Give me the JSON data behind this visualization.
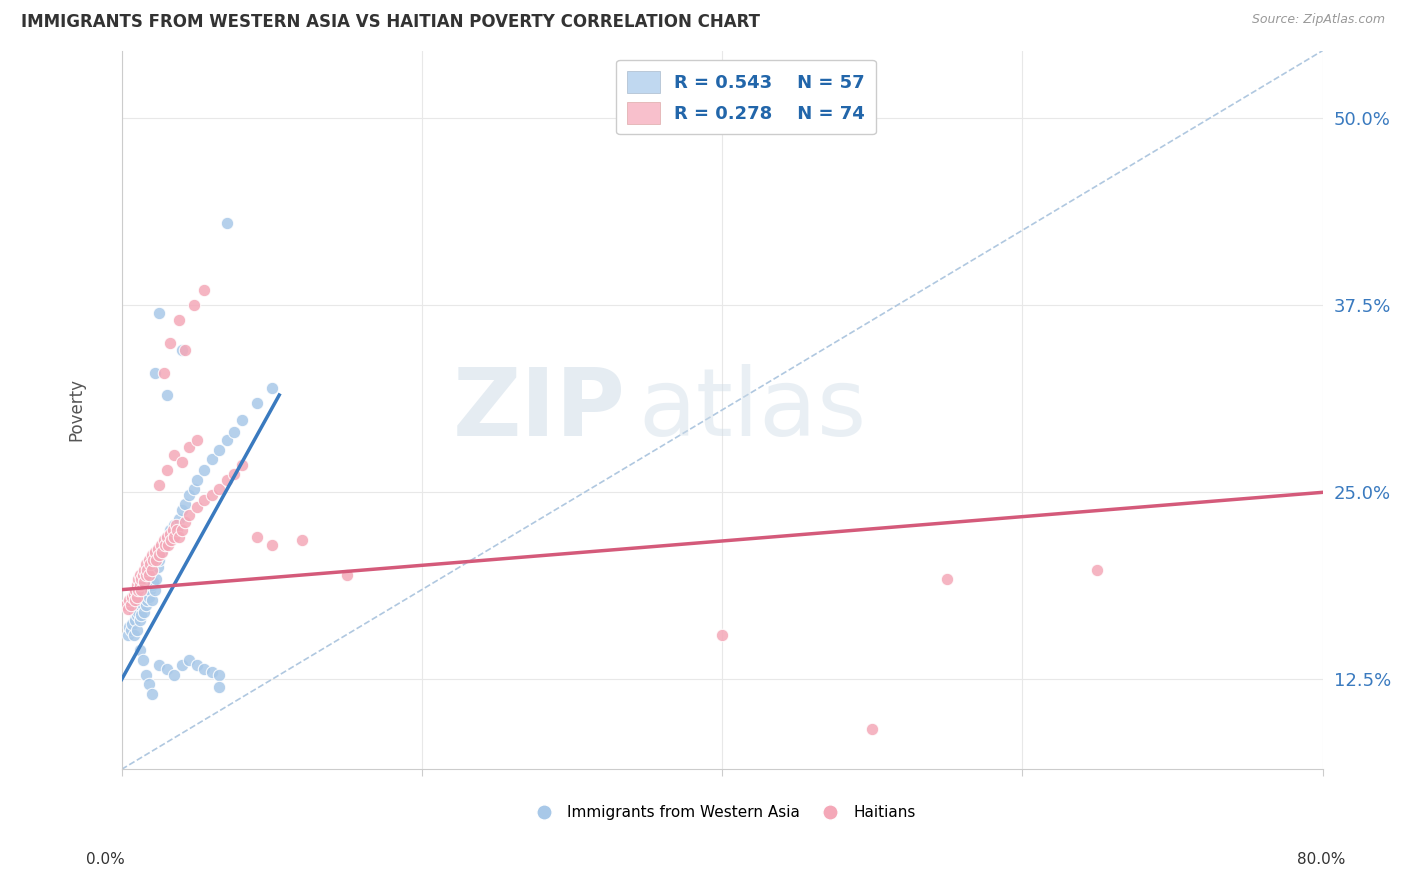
{
  "title": "IMMIGRANTS FROM WESTERN ASIA VS HAITIAN POVERTY CORRELATION CHART",
  "source": "Source: ZipAtlas.com",
  "ylabel": "Poverty",
  "ytick_values": [
    0.125,
    0.25,
    0.375,
    0.5
  ],
  "xlim": [
    0.0,
    0.8
  ],
  "ylim": [
    0.065,
    0.545
  ],
  "blue_color": "#a8c8e8",
  "pink_color": "#f4a8b8",
  "blue_line_color": "#3a7abf",
  "pink_line_color": "#d45a7a",
  "dashed_line_color": "#b0c8e0",
  "background_color": "#ffffff",
  "grid_color": "#e8e8e8",
  "blue_scatter": [
    [
      0.004,
      0.155
    ],
    [
      0.005,
      0.16
    ],
    [
      0.006,
      0.158
    ],
    [
      0.007,
      0.162
    ],
    [
      0.008,
      0.155
    ],
    [
      0.008,
      0.17
    ],
    [
      0.009,
      0.165
    ],
    [
      0.009,
      0.172
    ],
    [
      0.01,
      0.158
    ],
    [
      0.01,
      0.168
    ],
    [
      0.01,
      0.175
    ],
    [
      0.011,
      0.17
    ],
    [
      0.012,
      0.165
    ],
    [
      0.012,
      0.175
    ],
    [
      0.013,
      0.168
    ],
    [
      0.013,
      0.178
    ],
    [
      0.014,
      0.175
    ],
    [
      0.014,
      0.182
    ],
    [
      0.015,
      0.17
    ],
    [
      0.015,
      0.18
    ],
    [
      0.016,
      0.175
    ],
    [
      0.016,
      0.185
    ],
    [
      0.017,
      0.178
    ],
    [
      0.018,
      0.18
    ],
    [
      0.018,
      0.188
    ],
    [
      0.019,
      0.185
    ],
    [
      0.02,
      0.178
    ],
    [
      0.02,
      0.188
    ],
    [
      0.021,
      0.19
    ],
    [
      0.022,
      0.185
    ],
    [
      0.023,
      0.192
    ],
    [
      0.024,
      0.2
    ],
    [
      0.025,
      0.205
    ],
    [
      0.026,
      0.21
    ],
    [
      0.028,
      0.215
    ],
    [
      0.03,
      0.22
    ],
    [
      0.032,
      0.225
    ],
    [
      0.035,
      0.228
    ],
    [
      0.038,
      0.232
    ],
    [
      0.04,
      0.238
    ],
    [
      0.042,
      0.242
    ],
    [
      0.045,
      0.248
    ],
    [
      0.048,
      0.252
    ],
    [
      0.05,
      0.258
    ],
    [
      0.055,
      0.265
    ],
    [
      0.06,
      0.272
    ],
    [
      0.065,
      0.278
    ],
    [
      0.07,
      0.285
    ],
    [
      0.075,
      0.29
    ],
    [
      0.08,
      0.298
    ],
    [
      0.09,
      0.31
    ],
    [
      0.1,
      0.32
    ],
    [
      0.022,
      0.33
    ],
    [
      0.025,
      0.37
    ],
    [
      0.03,
      0.315
    ],
    [
      0.04,
      0.345
    ],
    [
      0.012,
      0.145
    ],
    [
      0.014,
      0.138
    ],
    [
      0.016,
      0.128
    ],
    [
      0.018,
      0.122
    ],
    [
      0.02,
      0.115
    ],
    [
      0.025,
      0.135
    ],
    [
      0.03,
      0.132
    ],
    [
      0.035,
      0.128
    ],
    [
      0.04,
      0.135
    ],
    [
      0.045,
      0.138
    ],
    [
      0.05,
      0.135
    ],
    [
      0.055,
      0.132
    ],
    [
      0.06,
      0.13
    ],
    [
      0.065,
      0.128
    ],
    [
      0.065,
      0.12
    ],
    [
      0.07,
      0.43
    ]
  ],
  "pink_scatter": [
    [
      0.003,
      0.175
    ],
    [
      0.004,
      0.172
    ],
    [
      0.005,
      0.178
    ],
    [
      0.006,
      0.175
    ],
    [
      0.007,
      0.18
    ],
    [
      0.008,
      0.182
    ],
    [
      0.009,
      0.178
    ],
    [
      0.009,
      0.185
    ],
    [
      0.01,
      0.18
    ],
    [
      0.01,
      0.188
    ],
    [
      0.011,
      0.185
    ],
    [
      0.011,
      0.192
    ],
    [
      0.012,
      0.188
    ],
    [
      0.012,
      0.195
    ],
    [
      0.013,
      0.192
    ],
    [
      0.013,
      0.185
    ],
    [
      0.014,
      0.195
    ],
    [
      0.015,
      0.19
    ],
    [
      0.015,
      0.198
    ],
    [
      0.016,
      0.195
    ],
    [
      0.016,
      0.202
    ],
    [
      0.017,
      0.198
    ],
    [
      0.018,
      0.195
    ],
    [
      0.018,
      0.205
    ],
    [
      0.019,
      0.202
    ],
    [
      0.02,
      0.198
    ],
    [
      0.02,
      0.208
    ],
    [
      0.021,
      0.205
    ],
    [
      0.022,
      0.21
    ],
    [
      0.023,
      0.205
    ],
    [
      0.024,
      0.212
    ],
    [
      0.025,
      0.208
    ],
    [
      0.026,
      0.215
    ],
    [
      0.027,
      0.21
    ],
    [
      0.028,
      0.218
    ],
    [
      0.029,
      0.215
    ],
    [
      0.03,
      0.22
    ],
    [
      0.031,
      0.215
    ],
    [
      0.032,
      0.222
    ],
    [
      0.033,
      0.218
    ],
    [
      0.034,
      0.225
    ],
    [
      0.035,
      0.22
    ],
    [
      0.036,
      0.228
    ],
    [
      0.037,
      0.225
    ],
    [
      0.038,
      0.22
    ],
    [
      0.04,
      0.225
    ],
    [
      0.042,
      0.23
    ],
    [
      0.045,
      0.235
    ],
    [
      0.05,
      0.24
    ],
    [
      0.055,
      0.245
    ],
    [
      0.06,
      0.248
    ],
    [
      0.065,
      0.252
    ],
    [
      0.07,
      0.258
    ],
    [
      0.075,
      0.262
    ],
    [
      0.08,
      0.268
    ],
    [
      0.025,
      0.255
    ],
    [
      0.03,
      0.265
    ],
    [
      0.035,
      0.275
    ],
    [
      0.04,
      0.27
    ],
    [
      0.045,
      0.28
    ],
    [
      0.05,
      0.285
    ],
    [
      0.028,
      0.33
    ],
    [
      0.032,
      0.35
    ],
    [
      0.038,
      0.365
    ],
    [
      0.042,
      0.345
    ],
    [
      0.048,
      0.375
    ],
    [
      0.055,
      0.385
    ],
    [
      0.09,
      0.22
    ],
    [
      0.1,
      0.215
    ],
    [
      0.12,
      0.218
    ],
    [
      0.15,
      0.195
    ],
    [
      0.55,
      0.192
    ],
    [
      0.65,
      0.198
    ],
    [
      0.4,
      0.155
    ],
    [
      0.5,
      0.092
    ]
  ],
  "blue_line": {
    "x0": 0.0,
    "x1": 0.105,
    "y0": 0.125,
    "y1": 0.315
  },
  "pink_line": {
    "x0": 0.0,
    "x1": 0.8,
    "y0": 0.185,
    "y1": 0.25
  },
  "dashed_line": {
    "x0": 0.0,
    "x1": 0.8,
    "y0": 0.065,
    "y1": 0.545
  }
}
